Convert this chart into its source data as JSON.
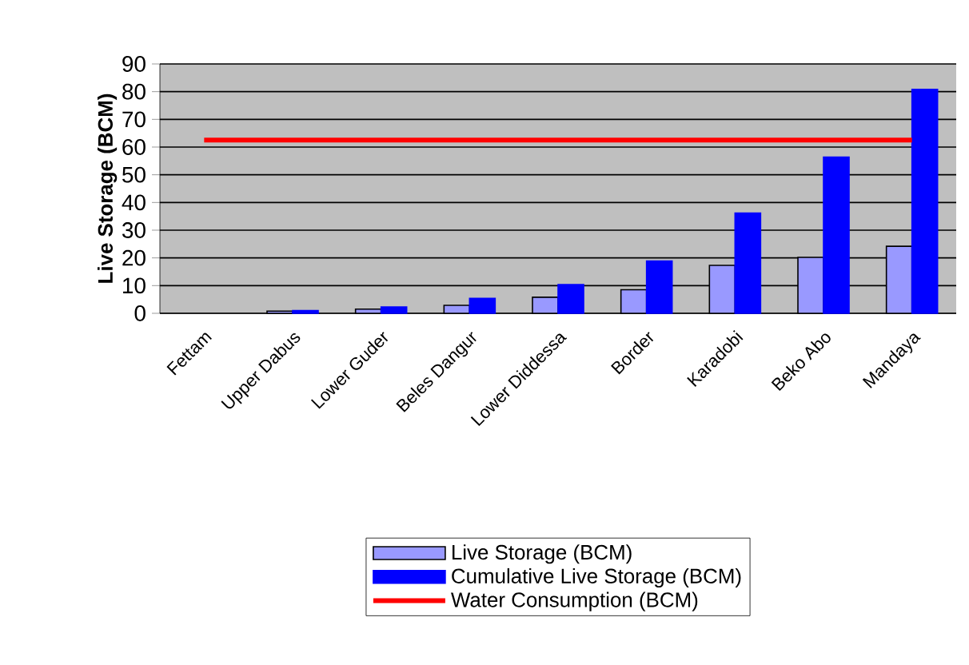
{
  "chart_data": {
    "type": "bar",
    "ylabel": "Live Storage (BCM)",
    "categories": [
      "Fettam",
      "Upper Dabus",
      "Lower Guder",
      "Beles Dangur",
      "Lower Diddessa",
      "Border",
      "Karadobi",
      "Beko Abo",
      "Mandaya"
    ],
    "series": [
      {
        "name": "Live Storage (BCM)",
        "color": "#9999ff",
        "values": [
          null,
          0.8,
          1.5,
          2.9,
          5.8,
          8.5,
          17.3,
          20.2,
          24.2
        ]
      },
      {
        "name": "Cumulative Live Storage (BCM)",
        "color": "#0000ff",
        "values": [
          null,
          1.0,
          2.3,
          5.4,
          10.4,
          18.9,
          36.2,
          56.4,
          80.8
        ]
      },
      {
        "name": "Water Consumption (BCM)",
        "type": "line",
        "color": "#ff0000",
        "marker": "none",
        "values": [
          62.5,
          62.5,
          62.5,
          62.5,
          62.5,
          62.5,
          62.5,
          62.5,
          62.5
        ]
      }
    ],
    "ylim": [
      0,
      90
    ],
    "yticks": [
      0,
      10,
      20,
      30,
      40,
      50,
      60,
      70,
      80,
      90
    ],
    "grid": "y",
    "legend": "bottom"
  }
}
